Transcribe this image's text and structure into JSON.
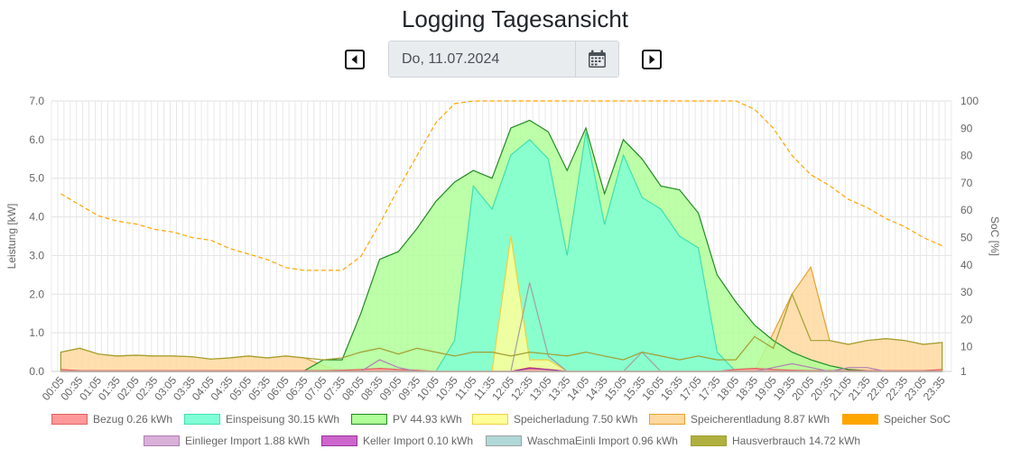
{
  "page": {
    "title": "Logging Tagesansicht",
    "date_value": "Do, 11.07.2024",
    "prev_day_icon": "caret-left-square-icon",
    "next_day_icon": "caret-right-square-icon",
    "calendar_icon": "calendar-icon"
  },
  "chart_data": {
    "type": "area",
    "ylabel": "Leistung [kW]",
    "ylim": [
      0,
      7
    ],
    "y_ticks": [
      "0.0",
      "1.0",
      "2.0",
      "3.0",
      "4.0",
      "5.0",
      "6.0",
      "7.0"
    ],
    "y2label": "SoC [%]",
    "y2lim": [
      1,
      100
    ],
    "y2_ticks": [
      "1",
      "10",
      "20",
      "30",
      "40",
      "50",
      "60",
      "70",
      "80",
      "90",
      "100"
    ],
    "grid": true,
    "legend_position": "bottom",
    "x": [
      "00:05",
      "00:35",
      "01:05",
      "01:35",
      "02:05",
      "02:35",
      "03:05",
      "03:35",
      "04:05",
      "04:35",
      "05:05",
      "05:35",
      "06:05",
      "06:35",
      "07:05",
      "07:35",
      "08:05",
      "08:35",
      "09:05",
      "09:35",
      "10:05",
      "10:35",
      "11:05",
      "11:35",
      "12:05",
      "12:35",
      "13:05",
      "13:35",
      "14:05",
      "14:35",
      "15:05",
      "15:35",
      "16:05",
      "16:35",
      "17:05",
      "17:35",
      "18:05",
      "18:35",
      "19:05",
      "19:35",
      "20:05",
      "20:35",
      "21:05",
      "21:35",
      "22:05",
      "22:35",
      "23:05",
      "23:35"
    ],
    "series": [
      {
        "name": "Bezug 0.26 kWh",
        "color": "#ff9999",
        "stroke": "#e06060",
        "values": [
          0.05,
          0.02,
          0.02,
          0.02,
          0.02,
          0.02,
          0.02,
          0.02,
          0.02,
          0.02,
          0.02,
          0.02,
          0.02,
          0.02,
          0.02,
          0.03,
          0.05,
          0.08,
          0.05,
          0.03,
          0,
          0,
          0,
          0,
          0,
          0.1,
          0.05,
          0,
          0,
          0,
          0,
          0,
          0,
          0,
          0,
          0,
          0.05,
          0.08,
          0.05,
          0.03,
          0.02,
          0.02,
          0.02,
          0.02,
          0.02,
          0.02,
          0.02,
          0.05
        ]
      },
      {
        "name": "Einspeisung 30.15 kWh",
        "color": "#80ffd4",
        "stroke": "#40e0b0",
        "values": [
          0,
          0,
          0,
          0,
          0,
          0,
          0,
          0,
          0,
          0,
          0,
          0,
          0,
          0,
          0,
          0,
          0,
          0,
          0,
          0,
          0,
          0.8,
          4.8,
          4.2,
          5.6,
          6.0,
          5.5,
          3.0,
          6.2,
          3.8,
          5.6,
          4.5,
          4.2,
          3.5,
          3.2,
          0.5,
          0,
          0,
          0,
          0,
          0,
          0,
          0,
          0,
          0,
          0,
          0,
          0
        ]
      },
      {
        "name": "PV 44.93 kWh",
        "color": "#b0ff99",
        "stroke": "#228b22",
        "values": [
          0,
          0,
          0,
          0,
          0,
          0,
          0,
          0,
          0,
          0,
          0,
          0,
          0,
          0.02,
          0.3,
          0.3,
          1.5,
          2.9,
          3.1,
          3.7,
          4.4,
          4.9,
          5.2,
          5.0,
          6.3,
          6.5,
          6.2,
          5.2,
          6.3,
          4.6,
          6.0,
          5.5,
          4.8,
          4.7,
          4.1,
          2.5,
          1.8,
          1.2,
          0.8,
          0.5,
          0.3,
          0.15,
          0.05,
          0.02,
          0,
          0,
          0,
          0
        ]
      },
      {
        "name": "Speicherladung 7.50 kWh",
        "color": "#ffff99",
        "stroke": "#f0d040",
        "values": [
          0,
          0,
          0,
          0,
          0,
          0,
          0,
          0,
          0,
          0,
          0,
          0,
          0,
          0,
          0,
          0,
          0,
          0,
          0,
          0,
          0,
          0,
          0,
          0,
          3.5,
          0.3,
          0.3,
          0,
          0,
          0,
          0,
          0,
          0,
          0,
          0,
          0,
          0,
          0,
          0,
          0,
          0,
          0,
          0,
          0,
          0,
          0,
          0,
          0
        ]
      },
      {
        "name": "Speicherentladung 8.87 kWh",
        "color": "#ffd9a0",
        "stroke": "#e8a030",
        "values": [
          0.5,
          0.6,
          0.45,
          0.4,
          0.42,
          0.4,
          0.4,
          0.38,
          0.32,
          0.35,
          0.4,
          0.35,
          0.4,
          0.35,
          0.15,
          0,
          0,
          0,
          0,
          0,
          0,
          0,
          0,
          0,
          0,
          0,
          0,
          0,
          0,
          0,
          0,
          0,
          0,
          0,
          0,
          0,
          0,
          0,
          1.0,
          2.0,
          2.7,
          0.8,
          0.7,
          0.8,
          0.85,
          0.8,
          0.7,
          0.75
        ]
      },
      {
        "name": "Speicher SoC",
        "color": "#ffa500",
        "stroke": "#ffa500",
        "axis": "right",
        "values": [
          66,
          62,
          58,
          56,
          55,
          53,
          52,
          50,
          49,
          46,
          44,
          42,
          39,
          38,
          38,
          38,
          43,
          55,
          68,
          80,
          92,
          99,
          100,
          100,
          100,
          100,
          100,
          100,
          100,
          100,
          100,
          100,
          100,
          100,
          100,
          100,
          100,
          97,
          90,
          80,
          73,
          69,
          64,
          61,
          57,
          54,
          50,
          47
        ]
      },
      {
        "name": "Einlieger Import 1.88 kWh",
        "color": "#d8b0d8",
        "stroke": "#b080b0",
        "values": [
          0,
          0,
          0,
          0,
          0,
          0,
          0,
          0,
          0,
          0,
          0,
          0,
          0,
          0,
          0,
          0,
          0,
          0.3,
          0.1,
          0,
          0,
          0,
          0,
          0,
          0,
          0,
          0,
          0,
          0,
          0,
          0,
          0,
          0,
          0,
          0,
          0,
          0,
          0,
          0.1,
          0.2,
          0.1,
          0,
          0.1,
          0.1,
          0,
          0,
          0,
          0
        ]
      },
      {
        "name": "Keller Import 0.10 kWh",
        "color": "#cc66cc",
        "stroke": "#993399",
        "values": [
          0,
          0,
          0,
          0,
          0,
          0,
          0,
          0,
          0,
          0,
          0,
          0,
          0,
          0,
          0,
          0,
          0,
          0,
          0,
          0,
          0,
          0,
          0,
          0,
          0,
          0.08,
          0.05,
          0,
          0,
          0,
          0,
          0,
          0,
          0,
          0,
          0,
          0,
          0,
          0,
          0,
          0,
          0,
          0,
          0,
          0,
          0,
          0,
          0
        ]
      },
      {
        "name": "WaschmaEinli Import 0.96 kWh",
        "color": "#b0d8d8",
        "stroke": "#a0a0a0",
        "values": [
          0,
          0,
          0,
          0,
          0,
          0,
          0,
          0,
          0,
          0,
          0,
          0,
          0,
          0,
          0,
          0,
          0,
          0,
          0,
          0,
          0,
          0,
          0,
          0,
          0,
          2.3,
          0.4,
          0,
          0,
          0,
          0,
          0.5,
          0,
          0,
          0,
          0,
          0,
          0,
          0,
          0,
          0,
          0,
          0,
          0,
          0,
          0,
          0,
          0
        ]
      },
      {
        "name": "Hausverbrauch 14.72 kWh",
        "color": "#b0b040",
        "stroke": "#a0a030",
        "values": [
          0.5,
          0.6,
          0.45,
          0.4,
          0.42,
          0.4,
          0.4,
          0.38,
          0.32,
          0.35,
          0.4,
          0.35,
          0.4,
          0.35,
          0.3,
          0.35,
          0.5,
          0.6,
          0.45,
          0.6,
          0.5,
          0.4,
          0.5,
          0.5,
          0.4,
          0.5,
          0.45,
          0.4,
          0.5,
          0.4,
          0.3,
          0.5,
          0.4,
          0.3,
          0.4,
          0.3,
          0.3,
          0.9,
          0.6,
          2.0,
          0.8,
          0.8,
          0.7,
          0.8,
          0.85,
          0.8,
          0.7,
          0.75
        ]
      }
    ]
  }
}
